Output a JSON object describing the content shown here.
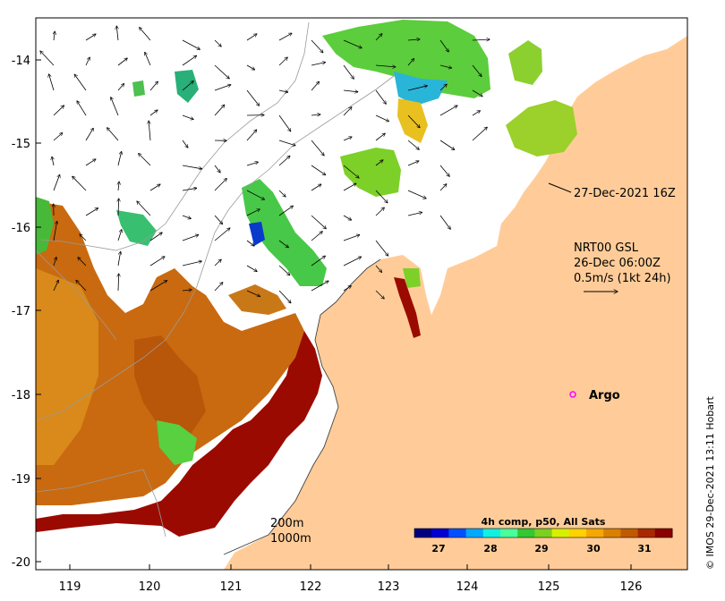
{
  "map": {
    "land_color": "#ffcc99",
    "lon_ticks": [
      "119",
      "120",
      "121",
      "122",
      "123",
      "124",
      "125",
      "126"
    ],
    "lat_ticks": [
      "-14",
      "-15",
      "-16",
      "-17",
      "-18",
      "-19",
      "-20"
    ]
  },
  "annotations": {
    "timestamp": "27-Dec-2021 16Z",
    "current_src": "NRT00 GSL",
    "current_time": "26-Dec 06:00Z",
    "current_scale": "0.5m/s (1kt 24h)",
    "argo_label": "Argo",
    "argo_color": "#ff00ff",
    "contour_200": "200m",
    "contour_1000": "1000m"
  },
  "colorbar": {
    "title": "4h comp, p50, All Sats",
    "labels": [
      "27",
      "28",
      "29",
      "30",
      "31"
    ],
    "colors": [
      "#00007f",
      "#0000d0",
      "#0050ff",
      "#00a8ff",
      "#12f0e0",
      "#48ff9a",
      "#32c832",
      "#7cd020",
      "#d8f000",
      "#ffd200",
      "#f5a800",
      "#d88000",
      "#c05a00",
      "#a82800",
      "#8b0000"
    ]
  },
  "credit": "© IMOS 29-Dec-2021 13:11 Hobart"
}
